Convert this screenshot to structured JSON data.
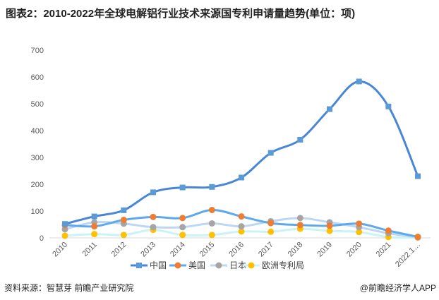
{
  "title": "图表2：2010-2022年全球电解铝行业技术来源国专利申请量趋势(单位：项)",
  "source": "资料来源：智慧芽 前瞻产业研究院",
  "credit": "@前瞻经济学人APP",
  "chart_data": {
    "type": "line",
    "title": "图表2：2010-2022年全球电解铝行业技术来源国专利申请量趋势(单位：项)",
    "categories": [
      "2010",
      "2011",
      "2012",
      "2013",
      "2014",
      "2015",
      "2016",
      "2017",
      "2018",
      "2019",
      "2020",
      "2021",
      "2022.1…"
    ],
    "ylim": [
      0,
      700
    ],
    "yticks": [
      0,
      100,
      200,
      300,
      400,
      500,
      600,
      700
    ],
    "legend": "bottom",
    "series": [
      {
        "name": "中国",
        "color": "#4a86d8",
        "marker": "square",
        "values": [
          52,
          80,
          103,
          170,
          188,
          190,
          225,
          317,
          366,
          480,
          583,
          490,
          230
        ]
      },
      {
        "name": "美国",
        "color": "#5ea8ec",
        "marker": "#ee7d31",
        "values": [
          48,
          43,
          67,
          78,
          74,
          104,
          80,
          55,
          48,
          45,
          53,
          27,
          4
        ]
      },
      {
        "name": "日本",
        "color": "#bdd7f3",
        "marker": "#a5a5a5",
        "values": [
          32,
          58,
          53,
          40,
          40,
          54,
          43,
          62,
          74,
          58,
          40,
          17,
          2
        ]
      },
      {
        "name": "欧洲专利局",
        "color": "#c8f3f7",
        "marker": "#ffc000",
        "values": [
          8,
          14,
          11,
          30,
          11,
          11,
          24,
          23,
          34,
          26,
          22,
          3,
          1
        ]
      }
    ]
  }
}
